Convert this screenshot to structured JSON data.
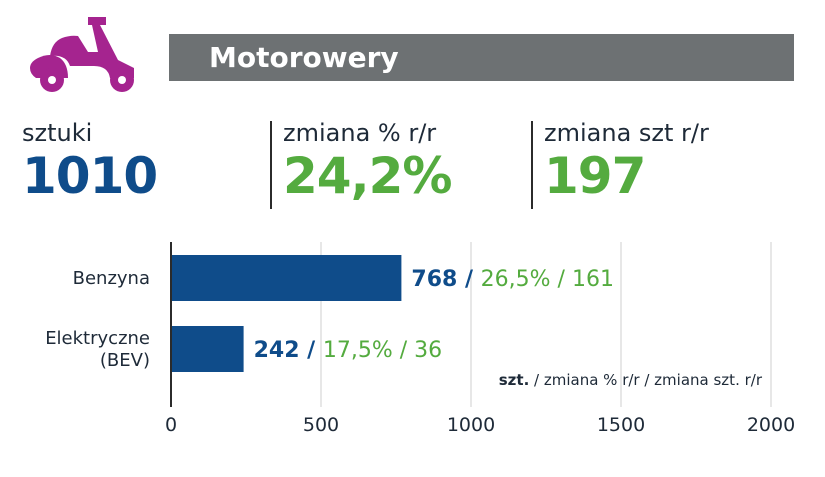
{
  "header": {
    "title": "Motorowery",
    "icon": "scooter-icon",
    "icon_color": "#a5248f",
    "bar_color": "#6d7173"
  },
  "stats": [
    {
      "label": "sztuki",
      "value": "1010",
      "color": "#0f4c8a"
    },
    {
      "label": "zmiana % r/r",
      "value": "24,2%",
      "color": "#54ab3f"
    },
    {
      "label": "zmiana szt r/r",
      "value": "197",
      "color": "#54ab3f"
    }
  ],
  "chart_data": {
    "type": "bar",
    "orientation": "horizontal",
    "categories": [
      [
        "Benzyna"
      ],
      [
        "Elektryczne",
        "(BEV)"
      ]
    ],
    "values": [
      768,
      242
    ],
    "change_pct": [
      "26,5%",
      "17,5%"
    ],
    "change_units": [
      "161",
      "36"
    ],
    "xlim": [
      0,
      2000
    ],
    "xticks": [
      "0",
      "500",
      "1000",
      "1500",
      "2000"
    ],
    "grid": true,
    "bar_color": "#0f4c8a",
    "label_color": "#54ab3f",
    "legend_bold": "szt.",
    "legend_rest": " / zmiana % r/r / zmiana szt. r/r"
  }
}
